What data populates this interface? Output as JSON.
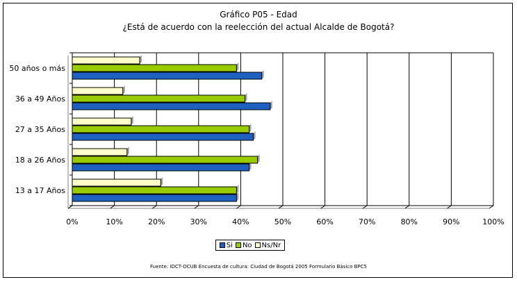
{
  "chart_data": {
    "type": "bar",
    "orientation": "horizontal",
    "title": "Gráfico P05 - Edad",
    "subtitle": "¿Está de acuerdo con la reelección del actual Alcalde de Bogotá?",
    "categories": [
      "50 años o más",
      "36 a 49 Años",
      "27 a 35 Años",
      "18 a 26 Años",
      "13 a 17 Años"
    ],
    "series": [
      {
        "name": "Ns/Nr",
        "color": "#ffffcc",
        "values": [
          16,
          12,
          14,
          13,
          21
        ]
      },
      {
        "name": "No",
        "color": "#99cc00",
        "values": [
          39,
          41,
          42,
          44,
          39
        ]
      },
      {
        "name": "Si",
        "color": "#1f5fbf",
        "values": [
          45,
          47,
          43,
          42,
          39
        ]
      }
    ],
    "xlim": [
      0,
      100
    ],
    "x_ticks": [
      "0%",
      "10%",
      "20%",
      "30%",
      "40%",
      "50%",
      "60%",
      "70%",
      "80%",
      "90%",
      "100%"
    ],
    "grid": true,
    "legend": {
      "position": "bottom",
      "entries": [
        "Si",
        "No",
        "Ns/Nr"
      ]
    },
    "source": "Fuente: IDCT-OCUB Encuesta de cultura: Ciudad de Bogotá 2005 Formulario Básico BPC5"
  }
}
